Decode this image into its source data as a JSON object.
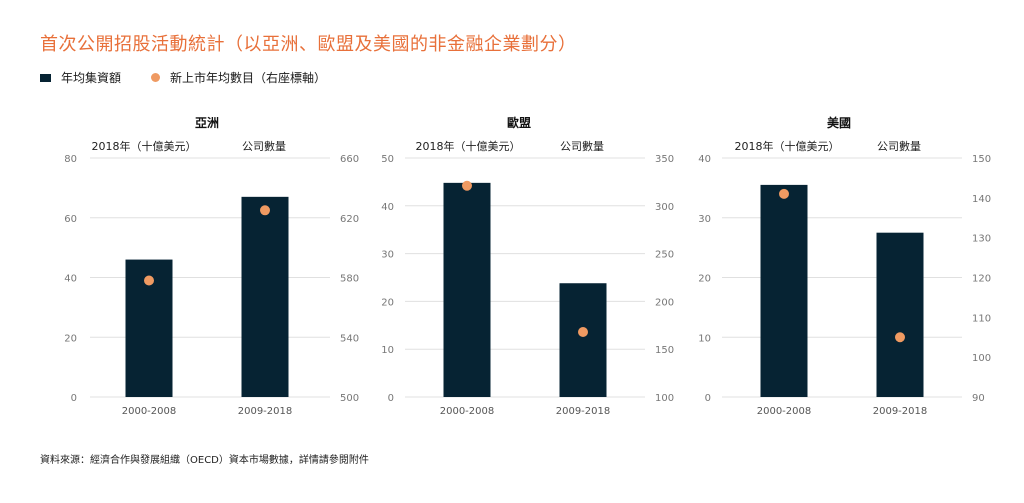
{
  "title": "首次公開招股活動統計（以亞洲、歐盟及美國的非金融企業劃分）",
  "legend": {
    "bar_label": "年均集資額",
    "dot_label": "新上市年均數目（右座標軸）"
  },
  "source": "資料來源：經濟合作與發展組織（OECD）資本市場數據，詳情請參閱附件",
  "colors": {
    "bar": "#062333",
    "dot": "#ef9a62",
    "title": "#e8703a",
    "grid": "#e0e0e0"
  },
  "chart_data": [
    {
      "type": "bar",
      "title": "亞洲",
      "left_axis_label": "2018年（十億美元）",
      "right_axis_label": "公司數量",
      "categories": [
        "2000-2008",
        "2009-2018"
      ],
      "series": [
        {
          "name": "年均集資額",
          "values": [
            46,
            67
          ]
        },
        {
          "name": "新上市年均數目（右座標軸）",
          "values": [
            578,
            625
          ]
        }
      ],
      "ylim": [
        0,
        80
      ],
      "y_ticks": [
        "0",
        "20",
        "40",
        "60",
        "80"
      ],
      "y2lim": [
        500,
        660
      ],
      "y2_ticks": [
        "500",
        "540",
        "580",
        "620",
        "660"
      ]
    },
    {
      "type": "bar",
      "title": "歐盟",
      "left_axis_label": "2018年（十億美元）",
      "right_axis_label": "公司數量",
      "categories": [
        "2000-2008",
        "2009-2018"
      ],
      "series": [
        {
          "name": "年均集資額",
          "values": [
            44.8,
            23.8
          ]
        },
        {
          "name": "新上市年均數目（右座標軸）",
          "values": [
            321,
            168
          ]
        }
      ],
      "ylim": [
        0,
        50
      ],
      "y_ticks": [
        "0",
        "10",
        "20",
        "30",
        "40",
        "50"
      ],
      "y2lim": [
        100,
        350
      ],
      "y2_ticks": [
        "100",
        "150",
        "200",
        "250",
        "300",
        "350"
      ]
    },
    {
      "type": "bar",
      "title": "美國",
      "left_axis_label": "2018年（十億美元）",
      "right_axis_label": "公司數量",
      "categories": [
        "2000-2008",
        "2009-2018"
      ],
      "series": [
        {
          "name": "年均集資額",
          "values": [
            35.5,
            27.5
          ]
        },
        {
          "name": "新上市年均數目（右座標軸）",
          "values": [
            141,
            105
          ]
        }
      ],
      "ylim": [
        0,
        40
      ],
      "y_ticks": [
        "0",
        "10",
        "20",
        "30",
        "40"
      ],
      "y2lim": [
        90,
        150
      ],
      "y2_ticks": [
        "90",
        "100",
        "110",
        "120",
        "130",
        "140",
        "150"
      ]
    }
  ]
}
